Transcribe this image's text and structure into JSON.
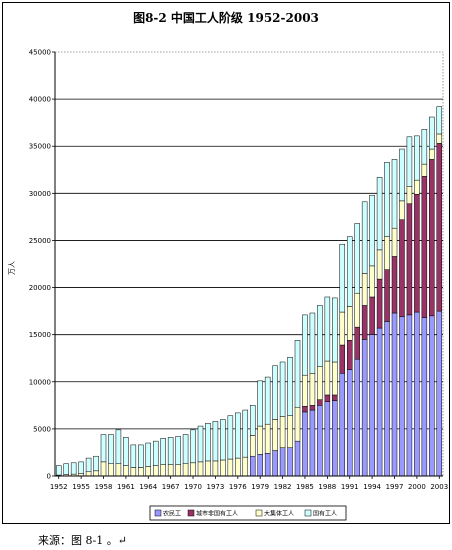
{
  "chart_data": {
    "type": "bar",
    "stacked": true,
    "title": "图8-2  中国工人阶级 1952-2003",
    "xlabel": "",
    "ylabel": "万人",
    "ylim": [
      0,
      45000
    ],
    "yticks": [
      0,
      5000,
      10000,
      15000,
      20000,
      25000,
      30000,
      35000,
      40000,
      45000
    ],
    "xticks": [
      1952,
      1955,
      1958,
      1961,
      1964,
      1967,
      1970,
      1973,
      1976,
      1979,
      1982,
      1985,
      1988,
      1991,
      1994,
      1997,
      2000,
      2003
    ],
    "grid": true,
    "legend_position": "bottom",
    "x": [
      1952,
      1953,
      1954,
      1955,
      1956,
      1957,
      1958,
      1959,
      1960,
      1961,
      1962,
      1963,
      1964,
      1965,
      1966,
      1967,
      1968,
      1969,
      1970,
      1971,
      1972,
      1973,
      1974,
      1975,
      1976,
      1977,
      1978,
      1979,
      1980,
      1981,
      1982,
      1983,
      1984,
      1985,
      1986,
      1987,
      1988,
      1989,
      1990,
      1991,
      1992,
      1993,
      1994,
      1995,
      1996,
      1997,
      1998,
      1999,
      2000,
      2001,
      2002,
      2003
    ],
    "series": [
      {
        "name": "农民工",
        "color": "#9999FF",
        "values": [
          0,
          0,
          0,
          0,
          0,
          0,
          0,
          0,
          0,
          0,
          0,
          0,
          0,
          0,
          0,
          0,
          0,
          0,
          0,
          0,
          0,
          0,
          0,
          0,
          0,
          0,
          2100,
          2300,
          2400,
          2700,
          3000,
          3000,
          3700,
          6800,
          7000,
          7500,
          7900,
          8000,
          10900,
          11300,
          12400,
          14500,
          15000,
          15700,
          16400,
          17300,
          16900,
          17100,
          17400,
          16800,
          17000,
          17500
        ]
      },
      {
        "name": "城市非国有工人",
        "color": "#993366",
        "values": [
          0,
          0,
          0,
          0,
          0,
          0,
          0,
          0,
          0,
          0,
          0,
          0,
          0,
          0,
          0,
          0,
          0,
          0,
          0,
          0,
          0,
          0,
          0,
          0,
          0,
          0,
          0,
          0,
          0,
          0,
          0,
          0,
          0,
          600,
          500,
          600,
          700,
          600,
          3000,
          3100,
          3400,
          3600,
          4000,
          5200,
          5500,
          6000,
          10300,
          11800,
          12500,
          15000,
          16600,
          17800
        ]
      },
      {
        "name": "大集体工人",
        "color": "#FFFFCC",
        "values": [
          100,
          150,
          200,
          250,
          450,
          550,
          1500,
          1300,
          1300,
          1100,
          900,
          900,
          1000,
          1100,
          1200,
          1200,
          1200,
          1300,
          1400,
          1500,
          1600,
          1600,
          1700,
          1800,
          1900,
          2000,
          2200,
          3000,
          3100,
          3300,
          3300,
          3400,
          3600,
          3300,
          3400,
          3500,
          3600,
          3500,
          3500,
          3600,
          3600,
          3400,
          3300,
          3100,
          3500,
          3000,
          2000,
          1800,
          1500,
          1300,
          1100,
          1000
        ]
      },
      {
        "name": "国有工人",
        "color": "#CCFFFF",
        "values": [
          1000,
          1150,
          1200,
          1250,
          1450,
          1550,
          2900,
          3100,
          3600,
          3000,
          2400,
          2400,
          2500,
          2600,
          2800,
          2900,
          3000,
          3100,
          3500,
          3800,
          4000,
          4200,
          4300,
          4600,
          4800,
          5000,
          3200,
          4800,
          5000,
          5700,
          5800,
          6200,
          7100,
          6400,
          6400,
          6500,
          6800,
          6800,
          7200,
          7400,
          7400,
          7600,
          7500,
          7700,
          7900,
          7300,
          5500,
          5300,
          4700,
          3700,
          3400,
          2900
        ]
      }
    ]
  },
  "source_note": "来源：图 8-1 。↵"
}
